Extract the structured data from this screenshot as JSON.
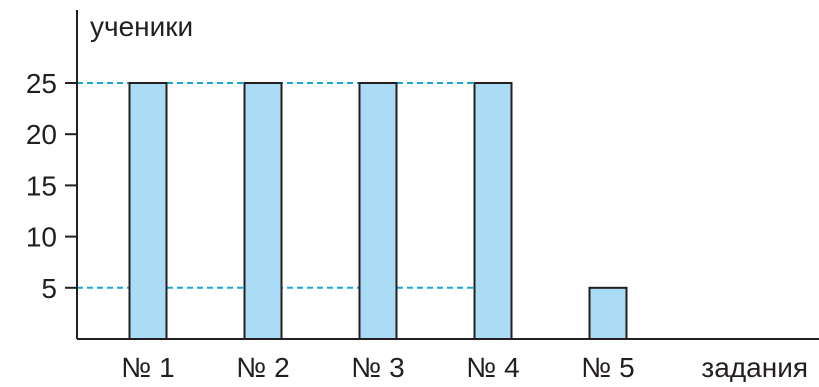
{
  "chart_data": {
    "type": "bar",
    "title": "",
    "ylabel": "ученики",
    "xlabel": "задания",
    "categories": [
      "№ 1",
      "№ 2",
      "№ 3",
      "№ 4",
      "№ 5"
    ],
    "values": [
      25,
      25,
      25,
      25,
      5
    ],
    "yticks": [
      5,
      10,
      15,
      20,
      25
    ],
    "ylim": [
      0,
      32
    ],
    "reference_lines": [
      25,
      5
    ],
    "grid": false,
    "legend": "none",
    "colors": {
      "bar_fill": "#aadcf5",
      "bar_stroke": "#231f20",
      "axis": "#231f20",
      "reference_line": "#1aa7d8",
      "text": "#231f20"
    }
  }
}
